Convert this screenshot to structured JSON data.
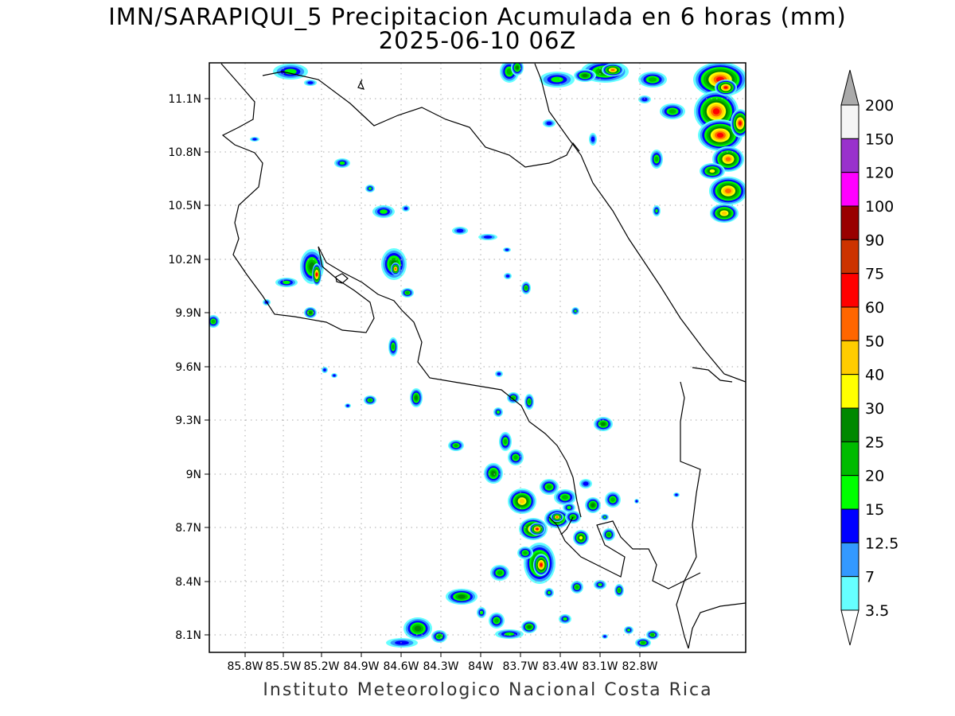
{
  "title": {
    "line1": "IMN/SARAPIQUI_5 Precipitacion Acumulada en 6 horas (mm)",
    "line2": "2025-06-10 06Z"
  },
  "footer": "Instituto Meteorologico Nacional Costa Rica",
  "map": {
    "lon_range": [
      -86.1,
      -83.5
    ],
    "lat_range": [
      8.0,
      11.3
    ],
    "lon_ticks": [
      "85.8W",
      "85.5W",
      "85.2W",
      "84.9W",
      "84.6W",
      "84.3W",
      "84W",
      "83.7W",
      "83.4W",
      "83.1W",
      "82.8W"
    ],
    "lat_ticks": [
      "11.1N",
      "10.8N",
      "10.5N",
      "10.2N",
      "9.9N",
      "9.6N",
      "9.3N",
      "9N",
      "8.7N",
      "8.4N",
      "8.1N"
    ],
    "grid": true
  },
  "colorbar": {
    "levels": [
      "200",
      "150",
      "120",
      "100",
      "90",
      "75",
      "60",
      "50",
      "40",
      "30",
      "25",
      "20",
      "15",
      "12.5",
      "7",
      "3.5"
    ],
    "colors": [
      "#f5f5f5",
      "#9932cc",
      "#ff00ff",
      "#990000",
      "#cc3300",
      "#ff0000",
      "#ff6600",
      "#ffcc00",
      "#ffff00",
      "#008800",
      "#00bb00",
      "#00ff00",
      "#0000ff",
      "#3399ff",
      "#66ffff"
    ],
    "above_color": "#aaaaaa"
  }
}
